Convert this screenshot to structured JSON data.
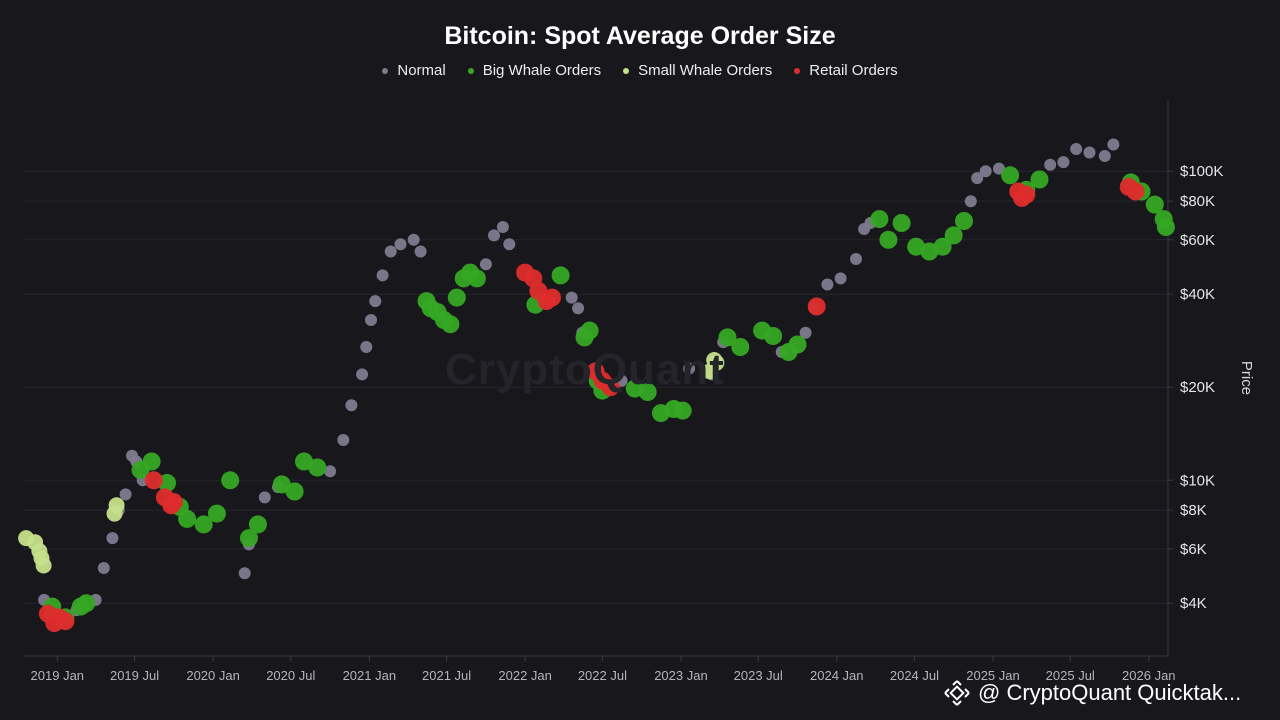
{
  "chart_data": {
    "type": "scatter",
    "title": "Bitcoin: Spot Average Order Size",
    "ylabel": "Price",
    "y_scale": "log",
    "y_ticks": [
      4000,
      6000,
      8000,
      10000,
      20000,
      40000,
      60000,
      80000,
      100000
    ],
    "y_tick_labels": [
      "$4K",
      "$6K",
      "$8K",
      "$10K",
      "$20K",
      "$40K",
      "$60K",
      "$80K",
      "$100K"
    ],
    "x_ticks": [
      "2019 Jan",
      "2019 Jul",
      "2020 Jan",
      "2020 Jul",
      "2021 Jan",
      "2021 Jul",
      "2022 Jan",
      "2022 Jul",
      "2023 Jan",
      "2023 Jul",
      "2024 Jan",
      "2024 Jul",
      "2025 Jan",
      "2025 Jul",
      "2026 Jan"
    ],
    "x_range": [
      "2018-10-15",
      "2026-02-15"
    ],
    "legend_position": "top-center",
    "grid": "horizontal",
    "colors": {
      "Normal": "#7d7b8e",
      "Big Whale Orders": "#35a824",
      "Small Whale Orders": "#c5e08a",
      "Retail Orders": "#de2c2c"
    },
    "series": [
      {
        "name": "Normal",
        "points": [
          [
            "2018-12-01",
            4100
          ],
          [
            "2018-12-15",
            3700
          ],
          [
            "2019-02-15",
            3800
          ],
          [
            "2019-04-01",
            4100
          ],
          [
            "2019-04-20",
            5200
          ],
          [
            "2019-05-10",
            6500
          ],
          [
            "2019-05-25",
            8000
          ],
          [
            "2019-06-10",
            9000
          ],
          [
            "2019-06-25",
            12000
          ],
          [
            "2019-07-05",
            11500
          ],
          [
            "2019-07-20",
            10000
          ],
          [
            "2020-03-15",
            5000
          ],
          [
            "2020-03-25",
            6200
          ],
          [
            "2020-05-01",
            8800
          ],
          [
            "2020-06-01",
            9500
          ],
          [
            "2020-10-01",
            10700
          ],
          [
            "2020-11-01",
            13500
          ],
          [
            "2020-11-20",
            17500
          ],
          [
            "2020-12-15",
            22000
          ],
          [
            "2020-12-25",
            27000
          ],
          [
            "2021-01-05",
            33000
          ],
          [
            "2021-01-15",
            38000
          ],
          [
            "2021-02-01",
            46000
          ],
          [
            "2021-02-20",
            55000
          ],
          [
            "2021-03-15",
            58000
          ],
          [
            "2021-04-15",
            60000
          ],
          [
            "2021-05-01",
            55000
          ],
          [
            "2021-10-01",
            50000
          ],
          [
            "2021-10-20",
            62000
          ],
          [
            "2021-11-10",
            66000
          ],
          [
            "2021-11-25",
            58000
          ],
          [
            "2022-04-20",
            39000
          ],
          [
            "2022-05-05",
            36000
          ],
          [
            "2022-05-15",
            30000
          ],
          [
            "2022-08-15",
            21000
          ],
          [
            "2023-01-20",
            23000
          ],
          [
            "2023-03-15",
            22000
          ],
          [
            "2023-04-10",
            28000
          ],
          [
            "2023-08-25",
            26000
          ],
          [
            "2023-10-20",
            30000
          ],
          [
            "2023-11-10",
            36000
          ],
          [
            "2023-12-10",
            43000
          ],
          [
            "2024-01-10",
            45000
          ],
          [
            "2024-02-15",
            52000
          ],
          [
            "2024-03-05",
            65000
          ],
          [
            "2024-03-20",
            68000
          ],
          [
            "2024-11-10",
            80000
          ],
          [
            "2024-11-25",
            95000
          ],
          [
            "2024-12-15",
            100000
          ],
          [
            "2025-01-15",
            102000
          ],
          [
            "2025-05-15",
            105000
          ],
          [
            "2025-06-15",
            107000
          ],
          [
            "2025-07-15",
            118000
          ],
          [
            "2025-08-15",
            115000
          ],
          [
            "2025-09-20",
            112000
          ],
          [
            "2025-10-10",
            122000
          ]
        ]
      },
      {
        "name": "Big Whale Orders",
        "points": [
          [
            "2018-12-20",
            3900
          ],
          [
            "2019-01-20",
            3600
          ],
          [
            "2019-02-25",
            3900
          ],
          [
            "2019-03-10",
            4000
          ],
          [
            "2019-07-15",
            10800
          ],
          [
            "2019-08-10",
            11500
          ],
          [
            "2019-09-15",
            9800
          ],
          [
            "2019-10-15",
            8200
          ],
          [
            "2019-11-01",
            7500
          ],
          [
            "2019-12-10",
            7200
          ],
          [
            "2020-01-10",
            7800
          ],
          [
            "2020-02-10",
            10000
          ],
          [
            "2020-03-25",
            6500
          ],
          [
            "2020-04-15",
            7200
          ],
          [
            "2020-06-10",
            9700
          ],
          [
            "2020-07-10",
            9200
          ],
          [
            "2020-08-01",
            11500
          ],
          [
            "2020-09-01",
            11000
          ],
          [
            "2021-05-15",
            38000
          ],
          [
            "2021-05-25",
            36000
          ],
          [
            "2021-06-10",
            35000
          ],
          [
            "2021-06-25",
            33000
          ],
          [
            "2021-07-10",
            32000
          ],
          [
            "2021-07-25",
            39000
          ],
          [
            "2021-08-10",
            45000
          ],
          [
            "2021-08-25",
            47000
          ],
          [
            "2021-09-10",
            45000
          ],
          [
            "2022-01-25",
            37000
          ],
          [
            "2022-03-25",
            46000
          ],
          [
            "2022-05-20",
            29000
          ],
          [
            "2022-06-01",
            30500
          ],
          [
            "2022-06-20",
            21000
          ],
          [
            "2022-07-01",
            19500
          ],
          [
            "2022-09-15",
            19800
          ],
          [
            "2022-10-15",
            19300
          ],
          [
            "2022-11-15",
            16500
          ],
          [
            "2022-12-15",
            17000
          ],
          [
            "2023-01-05",
            16800
          ],
          [
            "2023-04-20",
            29000
          ],
          [
            "2023-05-20",
            27000
          ],
          [
            "2023-07-10",
            30500
          ],
          [
            "2023-08-05",
            29300
          ],
          [
            "2023-09-10",
            26000
          ],
          [
            "2023-10-01",
            27500
          ],
          [
            "2024-04-10",
            70000
          ],
          [
            "2024-05-01",
            60000
          ],
          [
            "2024-06-01",
            68000
          ],
          [
            "2024-07-05",
            57000
          ],
          [
            "2024-08-05",
            55000
          ],
          [
            "2024-09-05",
            57000
          ],
          [
            "2024-10-01",
            62000
          ],
          [
            "2024-10-25",
            69000
          ],
          [
            "2025-02-10",
            97000
          ],
          [
            "2025-03-20",
            87000
          ],
          [
            "2025-04-20",
            94000
          ],
          [
            "2025-11-20",
            92000
          ],
          [
            "2025-12-15",
            86000
          ],
          [
            "2026-01-15",
            78000
          ],
          [
            "2026-02-05",
            70000
          ],
          [
            "2026-02-10",
            66000
          ]
        ]
      },
      {
        "name": "Small Whale Orders",
        "points": [
          [
            "2018-10-20",
            6500
          ],
          [
            "2018-11-10",
            6300
          ],
          [
            "2018-11-20",
            5900
          ],
          [
            "2018-11-25",
            5600
          ],
          [
            "2018-11-30",
            5300
          ],
          [
            "2019-05-15",
            7800
          ],
          [
            "2019-05-20",
            8300
          ],
          [
            "2023-03-10",
            22500
          ],
          [
            "2023-03-20",
            24500
          ],
          [
            "2023-03-25",
            24000
          ]
        ]
      },
      {
        "name": "Retail Orders",
        "points": [
          [
            "2018-12-10",
            3700
          ],
          [
            "2018-12-25",
            3450
          ],
          [
            "2019-01-05",
            3600
          ],
          [
            "2019-01-20",
            3500
          ],
          [
            "2019-08-15",
            10000
          ],
          [
            "2019-09-10",
            8800
          ],
          [
            "2019-09-25",
            8300
          ],
          [
            "2019-10-01",
            8500
          ],
          [
            "2022-01-01",
            47000
          ],
          [
            "2022-01-20",
            45000
          ],
          [
            "2022-02-01",
            41000
          ],
          [
            "2022-02-20",
            38000
          ],
          [
            "2022-03-05",
            39000
          ],
          [
            "2022-06-15",
            22500
          ],
          [
            "2022-07-01",
            21000
          ],
          [
            "2022-07-20",
            20000
          ],
          [
            "2023-11-15",
            36500
          ],
          [
            "2025-03-01",
            86000
          ],
          [
            "2025-03-10",
            82000
          ],
          [
            "2025-03-20",
            84000
          ],
          [
            "2025-11-15",
            89000
          ],
          [
            "2025-12-01",
            86000
          ]
        ]
      }
    ]
  },
  "source": "@ CryptoQuant Quicktak..."
}
